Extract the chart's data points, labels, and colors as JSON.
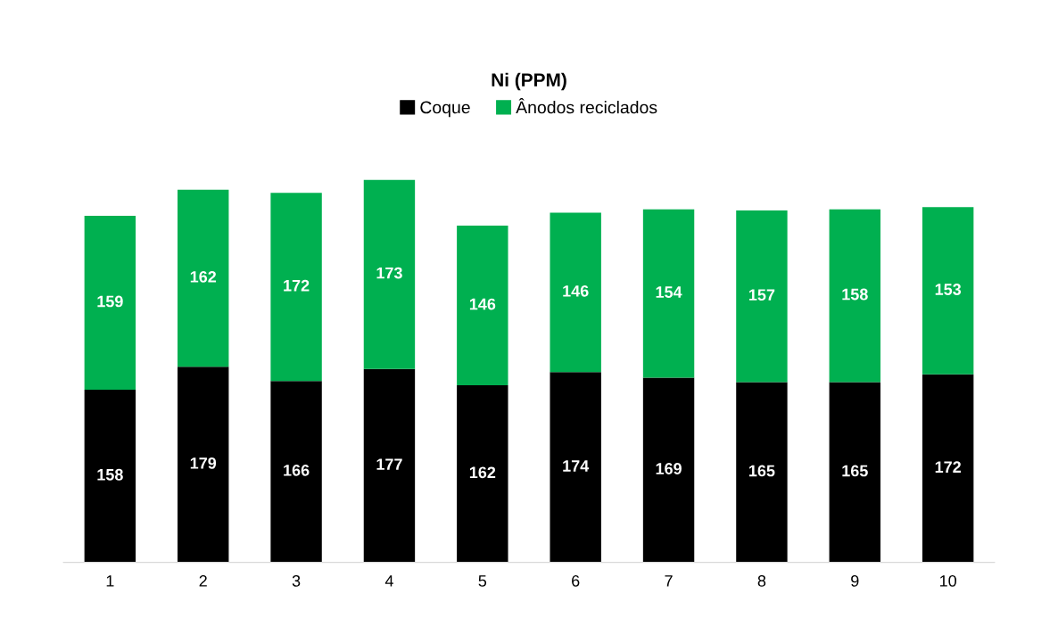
{
  "chart_data": {
    "type": "bar",
    "title": "Ni (PPM)",
    "categories": [
      "1",
      "2",
      "3",
      "4",
      "5",
      "6",
      "7",
      "8",
      "9",
      "10"
    ],
    "stacked": true,
    "data_labels": true,
    "tick_labels": "x",
    "legend": "top",
    "grid": false,
    "series": [
      {
        "name": "Coque",
        "color": "#000000",
        "values": [
          158,
          179,
          166,
          177,
          162,
          174,
          169,
          165,
          165,
          172
        ]
      },
      {
        "name": "Ânodos reciclados",
        "color": "#00b050",
        "values": [
          159,
          162,
          172,
          173,
          146,
          146,
          154,
          157,
          158,
          153
        ]
      }
    ]
  }
}
